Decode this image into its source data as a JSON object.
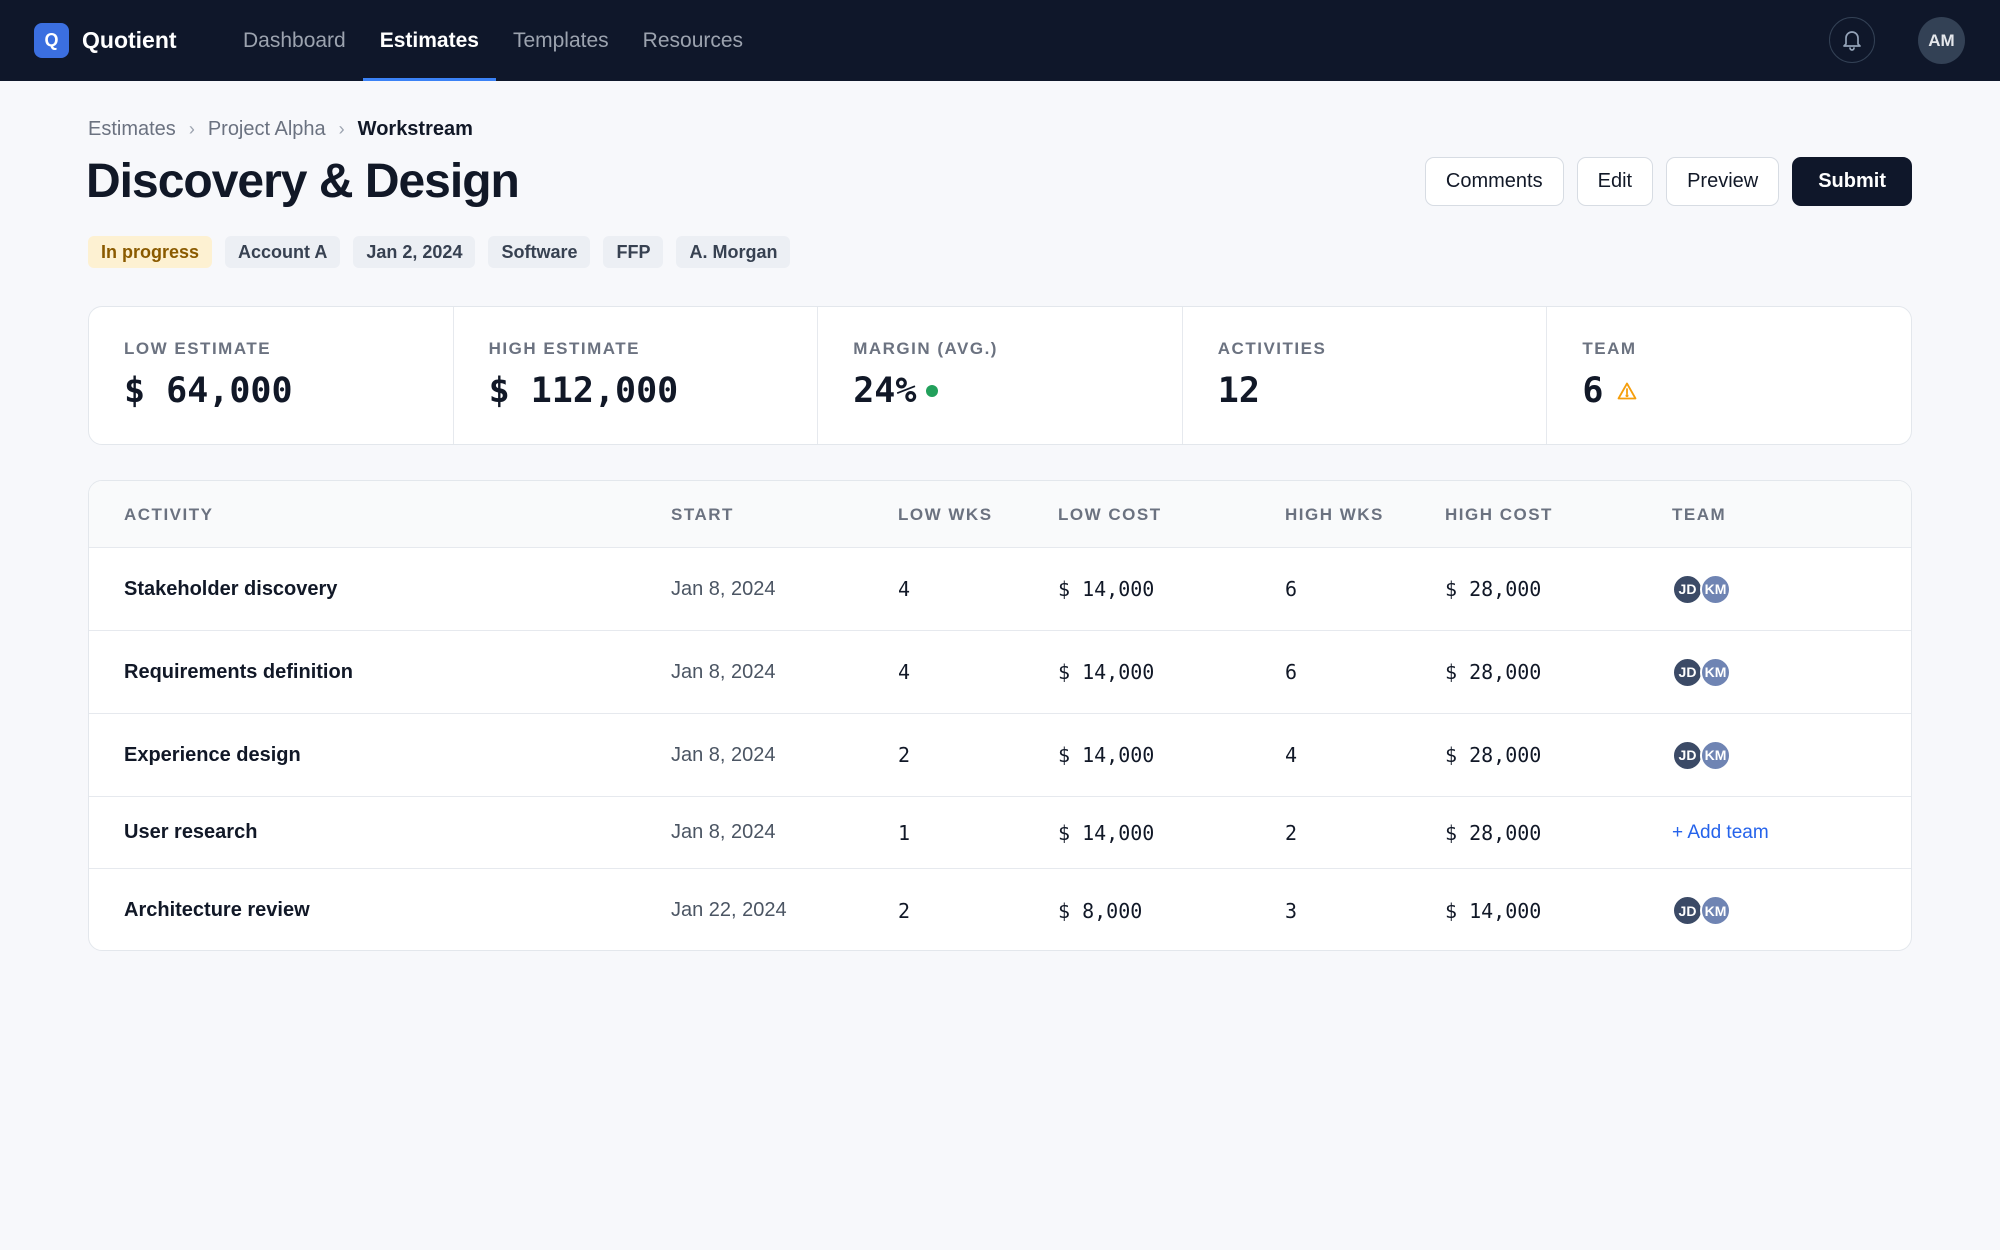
{
  "app": {
    "logo_letter": "Q",
    "name": "Quotient"
  },
  "nav": {
    "items": [
      {
        "label": "Dashboard",
        "active": false
      },
      {
        "label": "Estimates",
        "active": true
      },
      {
        "label": "Templates",
        "active": false
      },
      {
        "label": "Resources",
        "active": false
      }
    ],
    "user_initials": "AM"
  },
  "breadcrumb": {
    "items": [
      "Estimates",
      "Project Alpha"
    ],
    "current": "Workstream"
  },
  "page": {
    "title": "Discovery & Design"
  },
  "actions": {
    "comments": "Comments",
    "edit": "Edit",
    "preview": "Preview",
    "submit": "Submit"
  },
  "tags": {
    "status": "In progress",
    "account": "Account A",
    "date": "Jan 2, 2024",
    "category": "Software",
    "contract": "FFP",
    "owner": "A. Morgan"
  },
  "stats": {
    "low_estimate": {
      "label": "LOW ESTIMATE",
      "value": "$ 64,000"
    },
    "high_estimate": {
      "label": "HIGH ESTIMATE",
      "value": "$ 112,000"
    },
    "margin": {
      "label": "MARGIN (AVG.)",
      "value": "24%",
      "indicator_color": "#22a05b"
    },
    "activities": {
      "label": "ACTIVITIES",
      "value": "12"
    },
    "team": {
      "label": "TEAM",
      "value": "6",
      "icon": "warning-icon",
      "icon_color": "#f59e0b"
    }
  },
  "table": {
    "columns": [
      "ACTIVITY",
      "START",
      "LOW WKS",
      "LOW COST",
      "HIGH WKS",
      "HIGH COST",
      "TEAM"
    ],
    "rows": [
      {
        "activity": "Stakeholder discovery",
        "start": "Jan 8, 2024",
        "low_wks": "4",
        "low_cost": "$ 14,000",
        "high_wks": "6",
        "high_cost": "$ 28,000",
        "team": [
          "JD",
          "KM"
        ]
      },
      {
        "activity": "Requirements definition",
        "start": "Jan 8, 2024",
        "low_wks": "4",
        "low_cost": "$ 14,000",
        "high_wks": "6",
        "high_cost": "$ 28,000",
        "team": [
          "JD",
          "KM"
        ]
      },
      {
        "activity": "Experience design",
        "start": "Jan 8, 2024",
        "low_wks": "2",
        "low_cost": "$ 14,000",
        "high_wks": "4",
        "high_cost": "$ 28,000",
        "team": [
          "JD",
          "KM"
        ]
      },
      {
        "activity": "User research",
        "start": "Jan 8, 2024",
        "low_wks": "1",
        "low_cost": "$ 14,000",
        "high_wks": "2",
        "high_cost": "$ 28,000",
        "team": [],
        "add_team_label": "+ Add team"
      },
      {
        "activity": "Architecture review",
        "start": "Jan 22, 2024",
        "low_wks": "2",
        "low_cost": "$ 8,000",
        "high_wks": "3",
        "high_cost": "$ 14,000",
        "team": [
          "JD",
          "KM"
        ]
      }
    ]
  }
}
